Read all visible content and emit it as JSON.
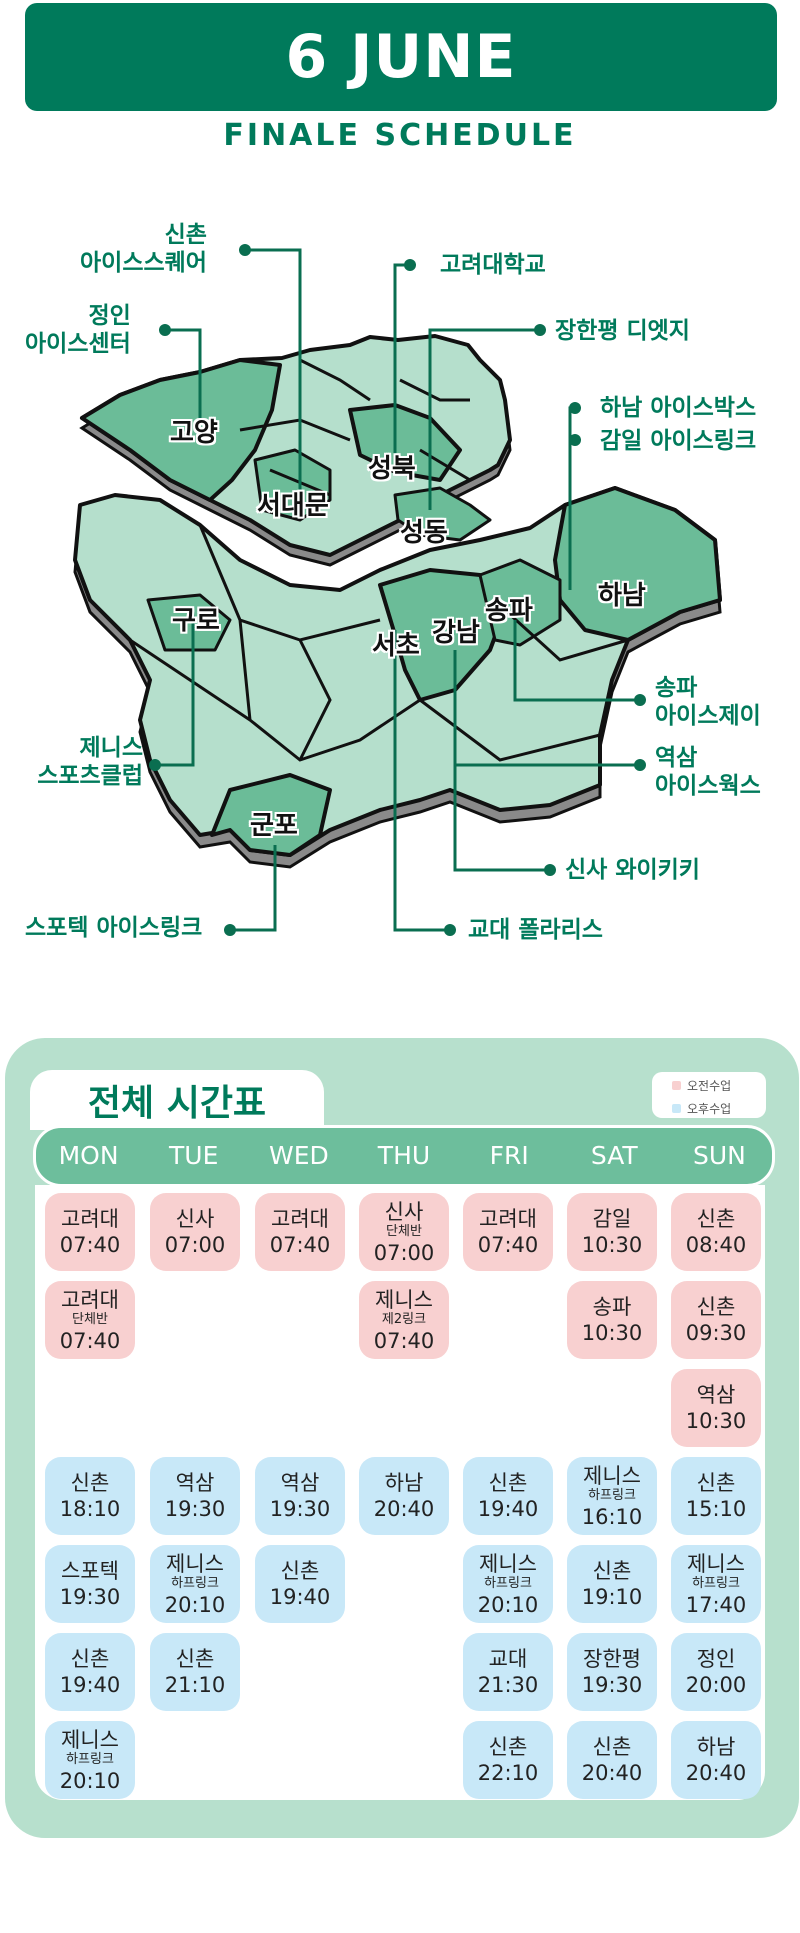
{
  "header": {
    "date": "6 JUNE",
    "subtitle": "FINALE SCHEDULE"
  },
  "colors": {
    "brand": "#007a5b",
    "map_light": "#b5dfcc",
    "map_dark": "#6bbc98",
    "am": "#f8d0d0",
    "pm": "#c8e8f8"
  },
  "districts": [
    "고양",
    "서대문",
    "성북",
    "성동",
    "구로",
    "서초",
    "강남",
    "송파",
    "하남",
    "군포"
  ],
  "rinks": {
    "sinchon": "신촌\n아이스스퀘어",
    "jeongin": "정인\n아이스센터",
    "korea_univ": "고려대학교",
    "janghanpyeong": "장한평 디엣지",
    "hanam": "하남 아이스박스",
    "gamil": "감일 아이스링크",
    "songpa": "송파\n아이스제이",
    "yeoksam": "역삼\n아이스웍스",
    "sinsa": "신사 와이키키",
    "gyodae": "교대 폴라리스",
    "jenis": "제니스\n스포츠클럽",
    "spotek": "스포텍 아이스링크"
  },
  "timetable": {
    "title": "전체 시간표",
    "legend": {
      "am": "오전수업",
      "pm": "오후수업"
    },
    "days": [
      "MON",
      "TUE",
      "WED",
      "THU",
      "FRI",
      "SAT",
      "SUN"
    ],
    "am": [
      [
        {
          "name": "고려대",
          "time": "07:40"
        },
        {
          "name": "고려대",
          "sub": "단체반",
          "time": "07:40"
        }
      ],
      [
        {
          "name": "신사",
          "time": "07:00"
        }
      ],
      [
        {
          "name": "고려대",
          "time": "07:40"
        }
      ],
      [
        {
          "name": "신사",
          "sub": "단체반",
          "time": "07:00"
        },
        {
          "name": "제니스",
          "sub": "제2링크",
          "time": "07:40"
        }
      ],
      [
        {
          "name": "고려대",
          "time": "07:40"
        }
      ],
      [
        {
          "name": "감일",
          "time": "10:30"
        },
        {
          "name": "송파",
          "time": "10:30"
        }
      ],
      [
        {
          "name": "신촌",
          "time": "08:40"
        },
        {
          "name": "신촌",
          "time": "09:30"
        },
        {
          "name": "역삼",
          "time": "10:30"
        }
      ]
    ],
    "pm": [
      [
        {
          "name": "신촌",
          "time": "18:10"
        },
        {
          "name": "스포텍",
          "time": "19:30"
        },
        {
          "name": "신촌",
          "time": "19:40"
        },
        {
          "name": "제니스",
          "sub": "하프링크",
          "time": "20:10"
        }
      ],
      [
        {
          "name": "역삼",
          "time": "19:30"
        },
        {
          "name": "제니스",
          "sub": "하프링크",
          "time": "20:10"
        },
        {
          "name": "신촌",
          "time": "21:10"
        }
      ],
      [
        {
          "name": "역삼",
          "time": "19:30"
        },
        {
          "name": "신촌",
          "time": "19:40"
        }
      ],
      [
        {
          "name": "하남",
          "time": "20:40"
        }
      ],
      [
        {
          "name": "신촌",
          "time": "19:40"
        },
        {
          "name": "제니스",
          "sub": "하프링크",
          "time": "20:10"
        },
        {
          "name": "교대",
          "time": "21:30"
        },
        {
          "name": "신촌",
          "time": "22:10"
        }
      ],
      [
        {
          "name": "제니스",
          "sub": "하프링크",
          "time": "16:10"
        },
        {
          "name": "신촌",
          "time": "19:10"
        },
        {
          "name": "장한평",
          "time": "19:30"
        },
        {
          "name": "신촌",
          "time": "20:40"
        }
      ],
      [
        {
          "name": "신촌",
          "time": "15:10"
        },
        {
          "name": "제니스",
          "sub": "하프링크",
          "time": "17:40"
        },
        {
          "name": "정인",
          "time": "20:00"
        },
        {
          "name": "하남",
          "time": "20:40"
        }
      ]
    ]
  }
}
